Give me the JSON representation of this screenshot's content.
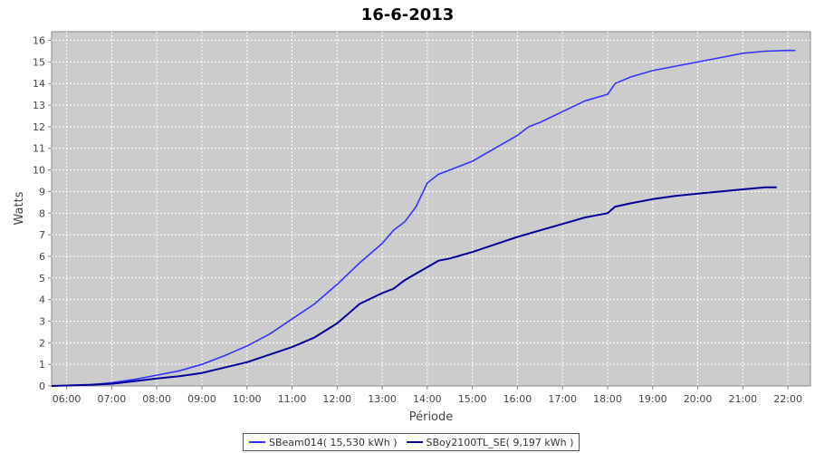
{
  "chart_data": {
    "type": "line",
    "title": "16-6-2013",
    "xlabel": "Période",
    "ylabel": "Watts",
    "x_ticks": [
      "06:00",
      "07:00",
      "08:00",
      "09:00",
      "10:00",
      "11:00",
      "12:00",
      "13:00",
      "14:00",
      "15:00",
      "16:00",
      "17:00",
      "18:00",
      "19:00",
      "20:00",
      "21:00",
      "22:00"
    ],
    "y_ticks": [
      0,
      1,
      2,
      3,
      4,
      5,
      6,
      7,
      8,
      9,
      10,
      11,
      12,
      13,
      14,
      15,
      16
    ],
    "xlim": [
      "05:40",
      "22:30"
    ],
    "ylim": [
      0,
      16.4
    ],
    "grid": true,
    "legend_position": "bottom",
    "background_color": "#cccccc",
    "series": [
      {
        "name": "SBeam014( 15,530 kWh )",
        "color": "#3333ff",
        "x": [
          "05:40",
          "06:00",
          "06:30",
          "07:00",
          "07:30",
          "08:00",
          "08:30",
          "09:00",
          "09:30",
          "10:00",
          "10:30",
          "11:00",
          "11:30",
          "12:00",
          "12:30",
          "13:00",
          "13:15",
          "13:30",
          "13:45",
          "14:00",
          "14:15",
          "14:30",
          "15:00",
          "15:30",
          "16:00",
          "16:15",
          "16:30",
          "17:00",
          "17:30",
          "18:00",
          "18:10",
          "18:30",
          "19:00",
          "19:30",
          "20:00",
          "20:30",
          "21:00",
          "21:30",
          "22:00",
          "22:10"
        ],
        "y": [
          0,
          0.02,
          0.05,
          0.15,
          0.3,
          0.5,
          0.7,
          1.0,
          1.4,
          1.85,
          2.4,
          3.1,
          3.8,
          4.7,
          5.7,
          6.6,
          7.2,
          7.6,
          8.3,
          9.4,
          9.8,
          10.0,
          10.4,
          11.0,
          11.6,
          12.0,
          12.2,
          12.7,
          13.2,
          13.5,
          14.0,
          14.3,
          14.6,
          14.8,
          15.0,
          15.2,
          15.4,
          15.5,
          15.53,
          15.53
        ]
      },
      {
        "name": "SBoy2100TL_SE( 9,197 kWh )",
        "color": "#000099",
        "x": [
          "05:40",
          "06:00",
          "06:30",
          "07:00",
          "07:30",
          "08:00",
          "08:30",
          "09:00",
          "09:30",
          "10:00",
          "10:30",
          "11:00",
          "11:30",
          "12:00",
          "12:30",
          "13:00",
          "13:15",
          "13:30",
          "13:45",
          "14:00",
          "14:15",
          "14:30",
          "15:00",
          "15:30",
          "16:00",
          "16:30",
          "17:00",
          "17:30",
          "18:00",
          "18:10",
          "18:30",
          "19:00",
          "19:30",
          "20:00",
          "20:30",
          "21:00",
          "21:30",
          "21:45"
        ],
        "y": [
          0,
          0.02,
          0.05,
          0.1,
          0.22,
          0.35,
          0.45,
          0.6,
          0.85,
          1.1,
          1.45,
          1.8,
          2.25,
          2.9,
          3.8,
          4.3,
          4.5,
          4.9,
          5.2,
          5.5,
          5.8,
          5.9,
          6.2,
          6.55,
          6.9,
          7.2,
          7.5,
          7.8,
          8.0,
          8.3,
          8.45,
          8.65,
          8.8,
          8.9,
          9.0,
          9.1,
          9.2,
          9.2
        ]
      }
    ]
  }
}
